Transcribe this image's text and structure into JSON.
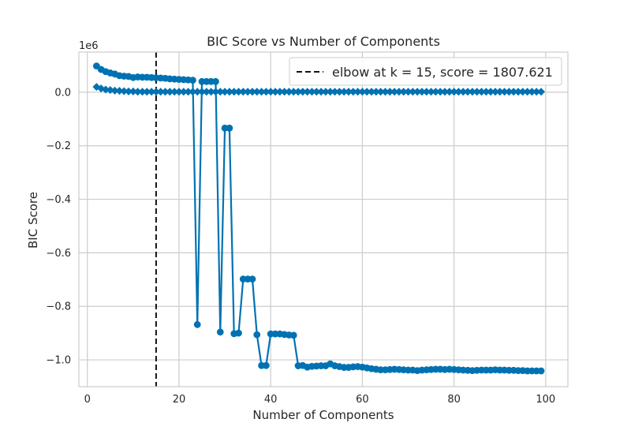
{
  "chart_data": {
    "type": "line",
    "title": "BIC Score vs Number of Components",
    "xlabel": "Number of Components",
    "ylabel": "BIC Score",
    "y_offset_label": "1e6",
    "xlim": [
      -1.85,
      104.85
    ],
    "ylim": [
      -1.1,
      0.15
    ],
    "xticks": [
      0,
      20,
      40,
      60,
      80,
      100
    ],
    "yticks": [
      -1.0,
      -0.8,
      -0.6,
      -0.4,
      -0.2,
      0.0
    ],
    "xtick_labels": [
      "0",
      "20",
      "40",
      "60",
      "80",
      "100"
    ],
    "ytick_labels": [
      "−1.0",
      "−0.8",
      "−0.6",
      "−0.4",
      "−0.2",
      "0.0"
    ],
    "grid": true,
    "colors": {
      "series": "#0072b2",
      "elbow": "#111111",
      "grid": "#cccccc",
      "frame": "#cccccc"
    },
    "legend": {
      "placement": "top-right",
      "label": "elbow at k = 15, score = 1807.621"
    },
    "elbow_x": 15,
    "series": [
      {
        "marker": "circle",
        "x": [
          2,
          3,
          4,
          5,
          6,
          7,
          8,
          9,
          10,
          11,
          12,
          13,
          14,
          15,
          16,
          17,
          18,
          19,
          20,
          21,
          22,
          23,
          24,
          25,
          26,
          27,
          28,
          29,
          30,
          31,
          32,
          33,
          34,
          35,
          36,
          37,
          38,
          39,
          40,
          41,
          42,
          43,
          44,
          45,
          46,
          47,
          48,
          49,
          50,
          51,
          52,
          53,
          54,
          55,
          56,
          57,
          58,
          59,
          60,
          61,
          62,
          63,
          64,
          65,
          66,
          67,
          68,
          69,
          70,
          71,
          72,
          73,
          74,
          75,
          76,
          77,
          78,
          79,
          80,
          81,
          82,
          83,
          84,
          85,
          86,
          87,
          88,
          89,
          90,
          91,
          92,
          93,
          94,
          95,
          96,
          97,
          98,
          99
        ],
        "y": [
          0.098,
          0.085,
          0.077,
          0.072,
          0.068,
          0.062,
          0.06,
          0.059,
          0.055,
          0.057,
          0.056,
          0.056,
          0.055,
          0.054,
          0.053,
          0.052,
          0.05,
          0.049,
          0.048,
          0.047,
          0.046,
          0.045,
          -0.868,
          0.04,
          0.04,
          0.04,
          0.04,
          -0.896,
          -0.134,
          -0.134,
          -0.902,
          -0.9,
          -0.698,
          -0.698,
          -0.698,
          -0.906,
          -1.021,
          -1.021,
          -0.903,
          -0.903,
          -0.903,
          -0.905,
          -0.907,
          -0.908,
          -1.022,
          -1.021,
          -1.027,
          -1.024,
          -1.023,
          -1.022,
          -1.022,
          -1.015,
          -1.022,
          -1.025,
          -1.028,
          -1.028,
          -1.026,
          -1.025,
          -1.027,
          -1.03,
          -1.033,
          -1.035,
          -1.037,
          -1.037,
          -1.036,
          -1.035,
          -1.036,
          -1.037,
          -1.038,
          -1.038,
          -1.04,
          -1.038,
          -1.037,
          -1.036,
          -1.035,
          -1.035,
          -1.036,
          -1.035,
          -1.036,
          -1.037,
          -1.038,
          -1.039,
          -1.04,
          -1.039,
          -1.038,
          -1.038,
          -1.038,
          -1.037,
          -1.038,
          -1.038,
          -1.039,
          -1.039,
          -1.04,
          -1.04,
          -1.041,
          -1.041,
          -1.041,
          -1.041
        ]
      },
      {
        "marker": "diamond",
        "x": [
          2,
          3,
          4,
          5,
          6,
          7,
          8,
          9,
          10,
          11,
          12,
          13,
          14,
          15,
          16,
          17,
          18,
          19,
          20,
          21,
          22,
          23,
          24,
          25,
          26,
          27,
          28,
          29,
          30,
          31,
          32,
          33,
          34,
          35,
          36,
          37,
          38,
          39,
          40,
          41,
          42,
          43,
          44,
          45,
          46,
          47,
          48,
          49,
          50,
          51,
          52,
          53,
          54,
          55,
          56,
          57,
          58,
          59,
          60,
          61,
          62,
          63,
          64,
          65,
          66,
          67,
          68,
          69,
          70,
          71,
          72,
          73,
          74,
          75,
          76,
          77,
          78,
          79,
          80,
          81,
          82,
          83,
          84,
          85,
          86,
          87,
          88,
          89,
          90,
          91,
          92,
          93,
          94,
          95,
          96,
          97,
          98,
          99
        ],
        "y": [
          0.02,
          0.014,
          0.01,
          0.008,
          0.006,
          0.005,
          0.004,
          0.003,
          0.003,
          0.002,
          0.002,
          0.002,
          0.002,
          0.0018,
          0.002,
          0.002,
          0.002,
          0.002,
          0.002,
          0.002,
          0.002,
          0.002,
          0.002,
          0.002,
          0.002,
          0.002,
          0.002,
          0.002,
          0.002,
          0.002,
          0.002,
          0.002,
          0.002,
          0.002,
          0.002,
          0.002,
          0.002,
          0.002,
          0.002,
          0.002,
          0.002,
          0.002,
          0.002,
          0.002,
          0.002,
          0.002,
          0.002,
          0.002,
          0.002,
          0.002,
          0.002,
          0.002,
          0.002,
          0.002,
          0.002,
          0.002,
          0.002,
          0.002,
          0.002,
          0.002,
          0.002,
          0.002,
          0.002,
          0.002,
          0.002,
          0.002,
          0.002,
          0.002,
          0.002,
          0.002,
          0.002,
          0.002,
          0.002,
          0.002,
          0.002,
          0.002,
          0.002,
          0.002,
          0.002,
          0.002,
          0.002,
          0.002,
          0.002,
          0.002,
          0.002,
          0.002,
          0.002,
          0.002,
          0.002,
          0.002,
          0.002,
          0.002,
          0.002,
          0.002,
          0.002,
          0.002,
          0.002,
          0.002
        ]
      }
    ]
  }
}
